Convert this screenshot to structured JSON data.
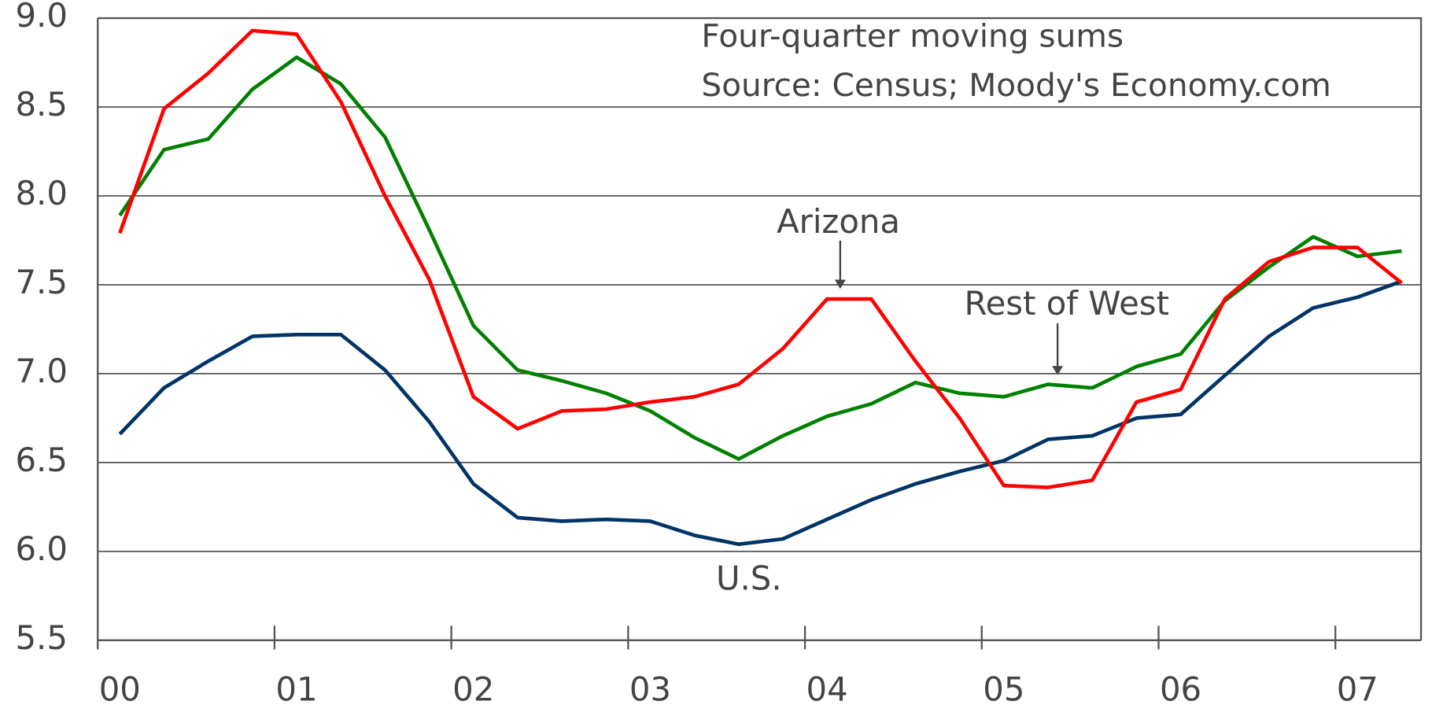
{
  "chart_data": {
    "type": "line",
    "annotations": [
      "Four-quarter moving sums",
      "Source: Census; Moody's Economy.com"
    ],
    "categories": [
      "00",
      null,
      null,
      null,
      "01",
      null,
      null,
      null,
      "02",
      null,
      null,
      null,
      "03",
      null,
      null,
      null,
      "04",
      null,
      null,
      null,
      "05",
      null,
      null,
      null,
      "06",
      null,
      null,
      null,
      "07",
      null
    ],
    "series": [
      {
        "name": "Arizona",
        "color": "#ff0000",
        "values": [
          7.79,
          8.49,
          8.69,
          8.93,
          8.91,
          8.53,
          8.0,
          7.53,
          6.87,
          6.69,
          6.79,
          6.8,
          6.84,
          6.87,
          6.94,
          7.14,
          7.42,
          7.42,
          7.07,
          6.75,
          6.37,
          6.36,
          6.4,
          6.84,
          6.91,
          7.42,
          7.63,
          7.71,
          7.71,
          7.51
        ]
      },
      {
        "name": "Rest of West",
        "color": "#008000",
        "values": [
          7.89,
          8.26,
          8.32,
          8.6,
          8.78,
          8.63,
          8.33,
          7.81,
          7.27,
          7.02,
          6.96,
          6.89,
          6.79,
          6.64,
          6.52,
          6.65,
          6.76,
          6.83,
          6.95,
          6.89,
          6.87,
          6.94,
          6.92,
          7.04,
          7.11,
          7.41,
          7.6,
          7.77,
          7.66,
          7.69
        ]
      },
      {
        "name": "U.S.",
        "color": "#003366",
        "values": [
          6.66,
          6.92,
          7.07,
          7.21,
          7.22,
          7.22,
          7.02,
          6.73,
          6.38,
          6.19,
          6.17,
          6.18,
          6.17,
          6.09,
          6.04,
          6.07,
          6.18,
          6.29,
          6.38,
          6.45,
          6.51,
          6.63,
          6.65,
          6.75,
          6.77,
          6.99,
          7.21,
          7.37,
          7.43,
          7.52
        ]
      }
    ],
    "ylim": [
      5.5,
      9.0
    ],
    "yticks": [
      {
        "value": 5.5,
        "label": "5.5"
      },
      {
        "value": 6,
        "label": "6.0"
      },
      6.5,
      {
        "value": 7,
        "label": "7.0"
      },
      7.5,
      {
        "value": 8,
        "label": "8.0"
      },
      8.5,
      {
        "value": 9,
        "label": "9.0"
      }
    ],
    "grid": true
  }
}
